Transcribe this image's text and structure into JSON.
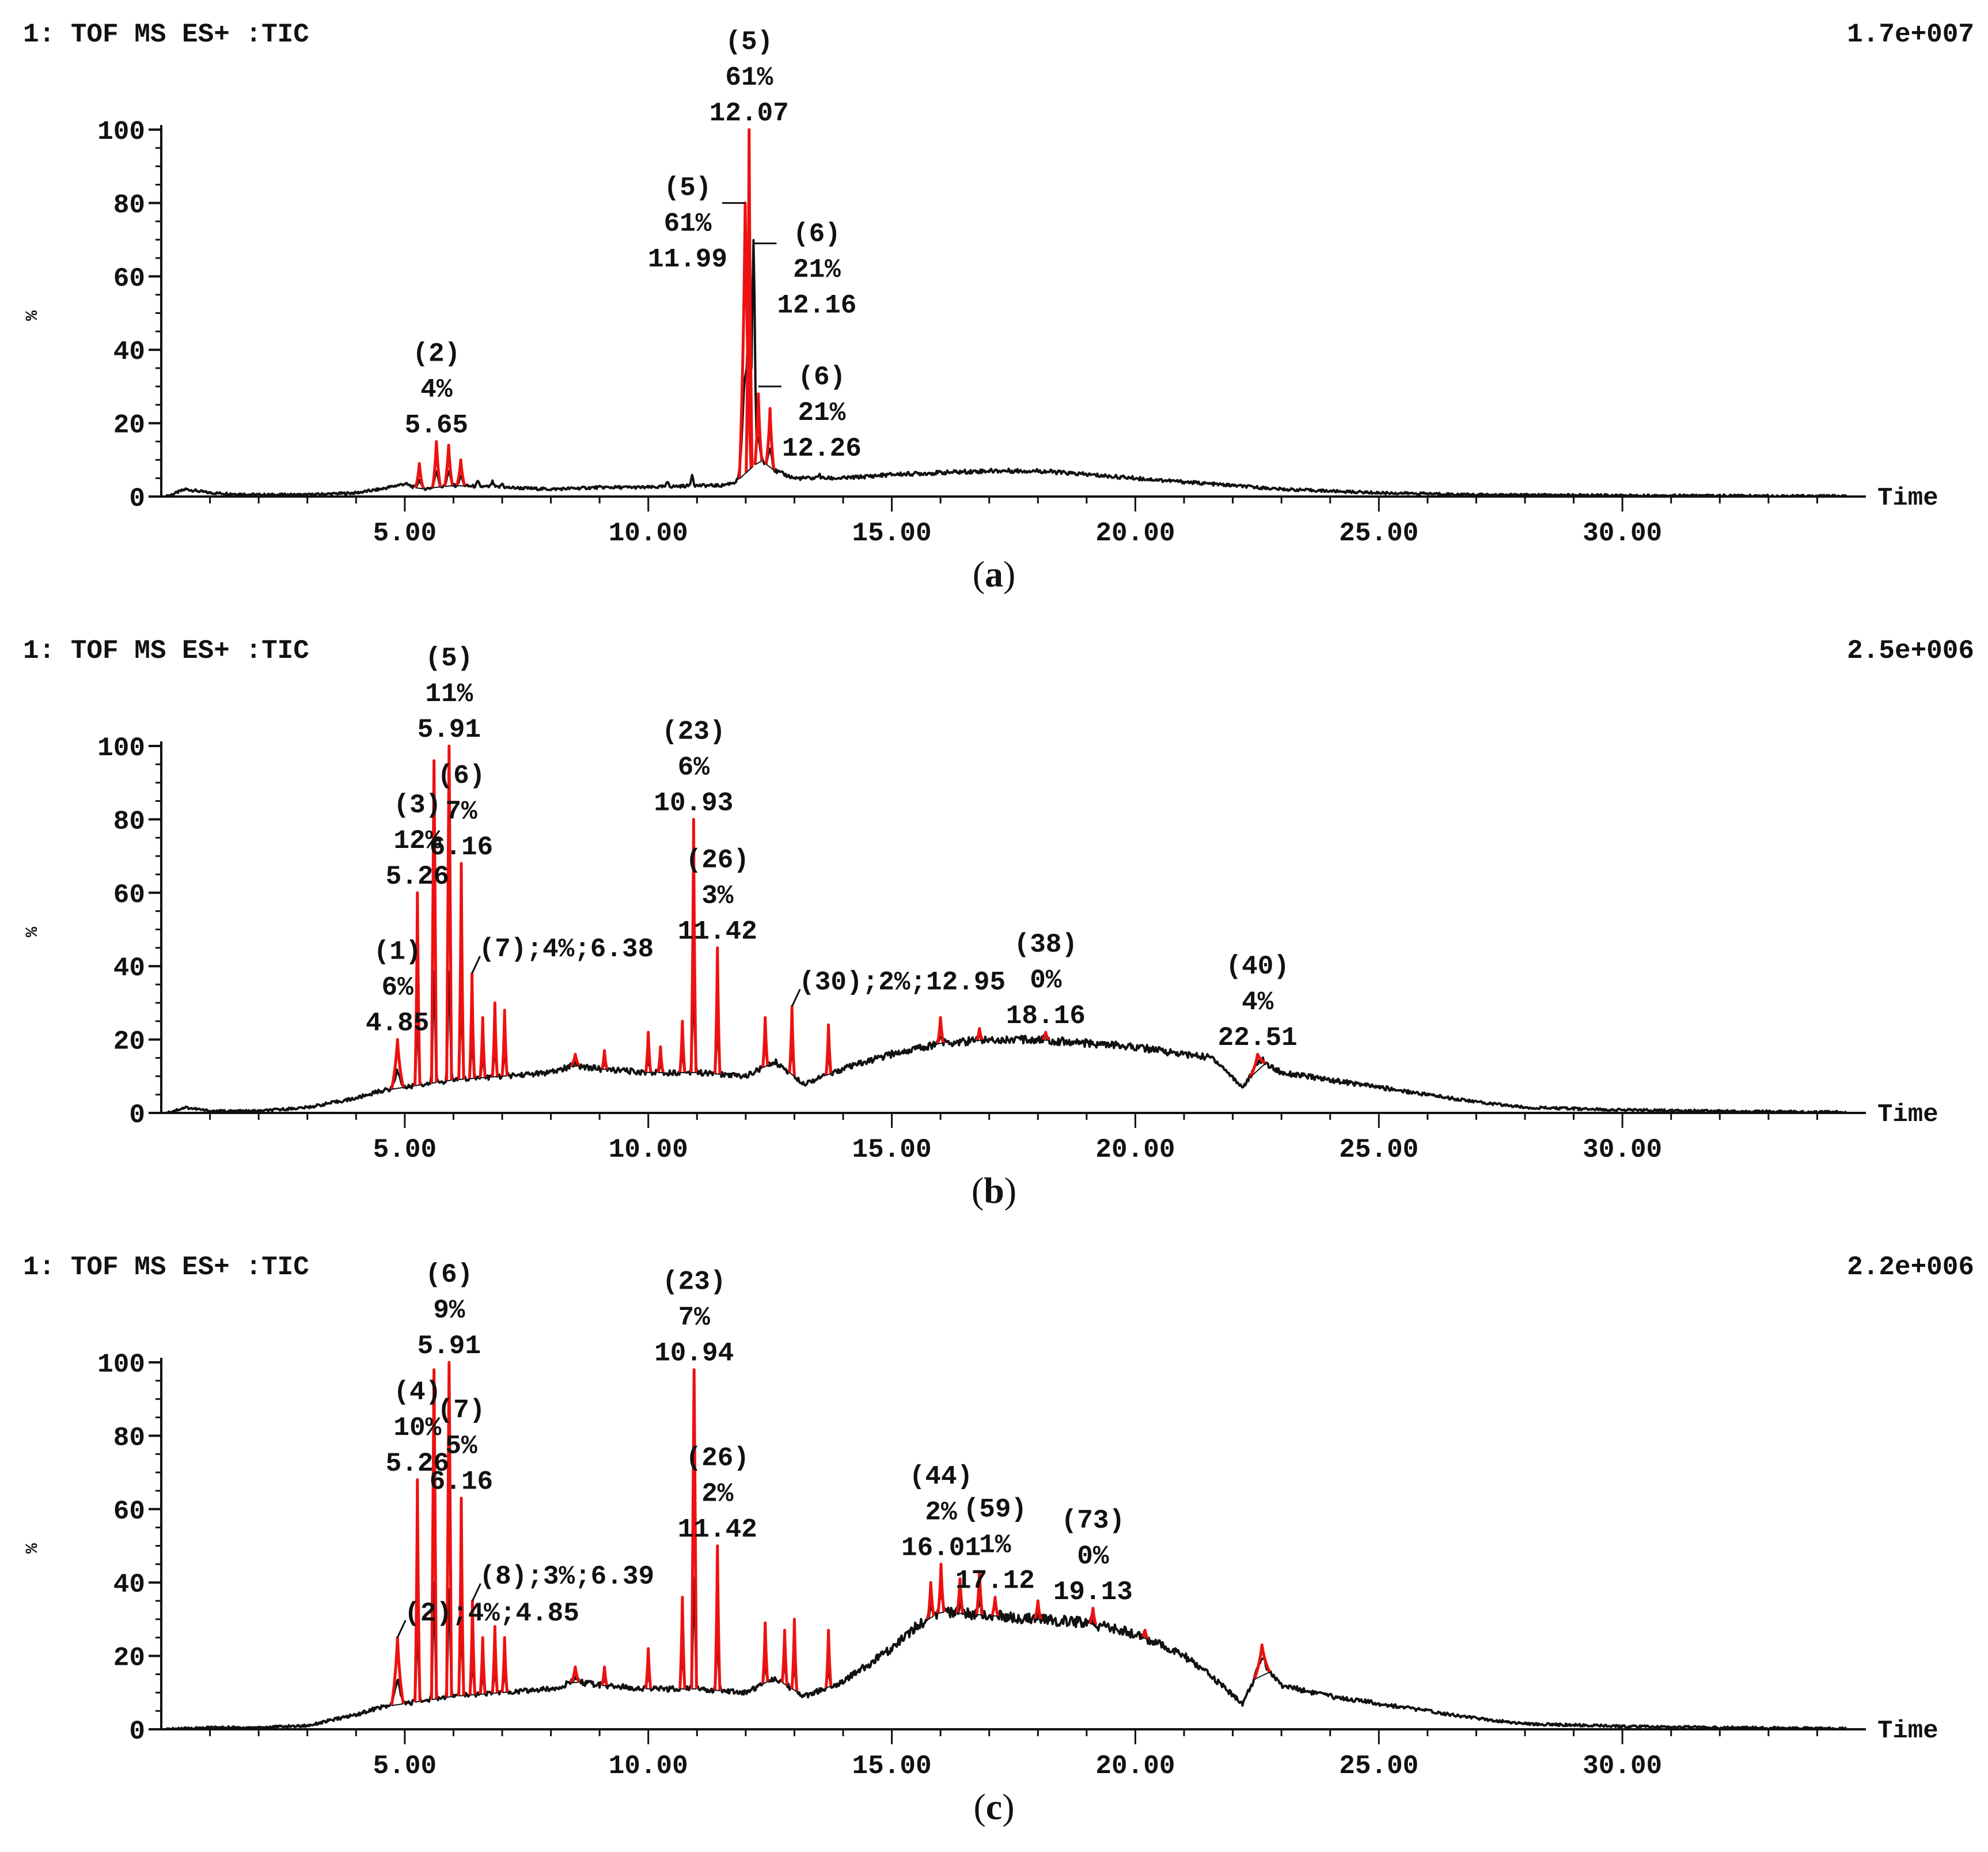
{
  "figure": {
    "panels": [
      {
        "id": "a",
        "caption_letter": "a",
        "trace_label": "1: TOF MS ES+ :TIC",
        "intensity_scale": "1.7e+007"
      },
      {
        "id": "b",
        "caption_letter": "b",
        "trace_label": "1: TOF MS ES+ :TIC",
        "intensity_scale": "2.5e+006"
      },
      {
        "id": "c",
        "caption_letter": "c",
        "trace_label": "1: TOF MS ES+ :TIC",
        "intensity_scale": "2.2e+006"
      }
    ]
  },
  "colors": {
    "tic": "#111111",
    "peak": "#ee1111",
    "axis": "#111111",
    "text": "#111111"
  },
  "chart_data": [
    {
      "type": "line",
      "panel": "a",
      "title": "1: TOF MS ES+ :TIC",
      "intensity_scale": "1.7e+007",
      "xlabel": "Time",
      "ylabel": "%",
      "xlim": [
        0,
        35
      ],
      "ylim": [
        0,
        100
      ],
      "xticks": [
        "5.00",
        "10.00",
        "15.00",
        "20.00",
        "25.00",
        "30.00"
      ],
      "yticks": [
        "0",
        "20",
        "40",
        "60",
        "80",
        "100"
      ],
      "baseline": [
        [
          0.1,
          0
        ],
        [
          0.5,
          2
        ],
        [
          1.0,
          1
        ],
        [
          2.0,
          0.5
        ],
        [
          3.0,
          0.5
        ],
        [
          4.0,
          1
        ],
        [
          4.5,
          2
        ],
        [
          5.0,
          3.5
        ],
        [
          5.3,
          2
        ],
        [
          6.0,
          3
        ],
        [
          7.0,
          2.5
        ],
        [
          8.0,
          2
        ],
        [
          9.0,
          2.5
        ],
        [
          10.0,
          2.5
        ],
        [
          11.0,
          3
        ],
        [
          11.5,
          3
        ],
        [
          11.8,
          4
        ],
        [
          12.3,
          10
        ],
        [
          12.6,
          7
        ],
        [
          13.0,
          5
        ],
        [
          14.0,
          5
        ],
        [
          15.0,
          6
        ],
        [
          16.0,
          6.5
        ],
        [
          17.0,
          7
        ],
        [
          17.5,
          7
        ],
        [
          18.0,
          7
        ],
        [
          19.0,
          6
        ],
        [
          20.0,
          5
        ],
        [
          21.0,
          4
        ],
        [
          22.0,
          3
        ],
        [
          23.0,
          2
        ],
        [
          24.0,
          1.5
        ],
        [
          25.0,
          1
        ],
        [
          26.0,
          0.8
        ],
        [
          27.0,
          0.5
        ],
        [
          30.0,
          0.3
        ],
        [
          33.0,
          0.2
        ],
        [
          34.6,
          0.1
        ]
      ],
      "peaks": [
        {
          "rt": 5.3,
          "height": 9,
          "width": 0.08,
          "color": "red"
        },
        {
          "rt": 5.65,
          "height": 15,
          "width": 0.08,
          "color": "red"
        },
        {
          "rt": 5.9,
          "height": 14,
          "width": 0.08,
          "color": "red"
        },
        {
          "rt": 6.15,
          "height": 10,
          "width": 0.08,
          "color": "red"
        },
        {
          "rt": 6.5,
          "height": 4,
          "width": 0.05,
          "color": "black"
        },
        {
          "rt": 6.8,
          "height": 4,
          "width": 0.05,
          "color": "black"
        },
        {
          "rt": 7.0,
          "height": 3.5,
          "width": 0.05,
          "color": "black"
        },
        {
          "rt": 10.4,
          "height": 4,
          "width": 0.05,
          "color": "black"
        },
        {
          "rt": 10.9,
          "height": 6,
          "width": 0.05,
          "color": "black"
        },
        {
          "rt": 11.99,
          "height": 80,
          "width": 0.12,
          "color": "red"
        },
        {
          "rt": 12.07,
          "height": 100,
          "width": 0.06,
          "color": "red"
        },
        {
          "rt": 12.16,
          "height": 69,
          "width": 0.06,
          "color": "black"
        },
        {
          "rt": 12.26,
          "height": 28,
          "width": 0.07,
          "color": "red"
        },
        {
          "rt": 12.5,
          "height": 24,
          "width": 0.08,
          "color": "red"
        },
        {
          "rt": 13.5,
          "height": 6,
          "width": 0.06,
          "color": "black"
        }
      ],
      "annotations": [
        {
          "rt": 5.65,
          "lines": [
            "(2)",
            "4%",
            "5.65"
          ],
          "leader": false
        },
        {
          "rt": 12.07,
          "lines": [
            "(5)",
            "61%",
            "12.07"
          ],
          "leader": false
        },
        {
          "rt": 11.99,
          "lines": [
            "(5)",
            "61%",
            "11.99"
          ],
          "leader": true,
          "side": "left",
          "leader_y": 80
        },
        {
          "rt": 12.16,
          "lines": [
            "(6)",
            "21%",
            "12.16"
          ],
          "leader": true,
          "side": "right",
          "leader_y": 69
        },
        {
          "rt": 12.26,
          "lines": [
            "(6)",
            "21%",
            "12.26"
          ],
          "leader": true,
          "side": "right",
          "leader_y": 30
        }
      ]
    },
    {
      "type": "line",
      "panel": "b",
      "title": "1: TOF MS ES+ :TIC",
      "intensity_scale": "2.5e+006",
      "xlabel": "Time",
      "ylabel": "%",
      "xlim": [
        0,
        35
      ],
      "ylim": [
        0,
        100
      ],
      "xticks": [
        "5.00",
        "10.00",
        "15.00",
        "20.00",
        "25.00",
        "30.00"
      ],
      "yticks": [
        "0",
        "20",
        "40",
        "60",
        "80",
        "100"
      ],
      "baseline": [
        [
          0.1,
          0
        ],
        [
          0.5,
          1.5
        ],
        [
          1.0,
          0.5
        ],
        [
          2.0,
          0.5
        ],
        [
          3.0,
          1.5
        ],
        [
          4.0,
          4
        ],
        [
          4.5,
          6
        ],
        [
          5.0,
          7
        ],
        [
          6.0,
          9
        ],
        [
          7.0,
          10
        ],
        [
          8.0,
          11
        ],
        [
          8.5,
          13
        ],
        [
          9.0,
          12
        ],
        [
          10.0,
          11
        ],
        [
          11.0,
          11
        ],
        [
          12.0,
          10
        ],
        [
          12.6,
          14
        ],
        [
          13.2,
          8
        ],
        [
          14.0,
          12
        ],
        [
          15.0,
          16
        ],
        [
          16.0,
          19
        ],
        [
          17.0,
          20
        ],
        [
          18.0,
          20
        ],
        [
          19.0,
          19
        ],
        [
          20.0,
          18
        ],
        [
          21.0,
          16
        ],
        [
          21.6,
          15
        ],
        [
          22.2,
          7
        ],
        [
          22.6,
          14
        ],
        [
          23.0,
          11
        ],
        [
          24.0,
          9
        ],
        [
          25.0,
          7
        ],
        [
          26.0,
          5
        ],
        [
          27.0,
          3
        ],
        [
          28.0,
          1.5
        ],
        [
          30.0,
          0.8
        ],
        [
          32.0,
          0.5
        ],
        [
          34.6,
          0.2
        ]
      ],
      "peaks": [
        {
          "rt": 4.85,
          "height": 20,
          "width": 0.12,
          "color": "red"
        },
        {
          "rt": 5.26,
          "height": 60,
          "width": 0.05,
          "color": "red"
        },
        {
          "rt": 5.6,
          "height": 96,
          "width": 0.05,
          "color": "red"
        },
        {
          "rt": 5.91,
          "height": 100,
          "width": 0.05,
          "color": "red"
        },
        {
          "rt": 6.16,
          "height": 68,
          "width": 0.05,
          "color": "red"
        },
        {
          "rt": 6.38,
          "height": 38,
          "width": 0.05,
          "color": "red"
        },
        {
          "rt": 6.6,
          "height": 26,
          "width": 0.05,
          "color": "red"
        },
        {
          "rt": 6.85,
          "height": 30,
          "width": 0.05,
          "color": "red"
        },
        {
          "rt": 7.05,
          "height": 28,
          "width": 0.05,
          "color": "red"
        },
        {
          "rt": 8.5,
          "height": 16,
          "width": 0.08,
          "color": "red"
        },
        {
          "rt": 9.1,
          "height": 17,
          "width": 0.05,
          "color": "red"
        },
        {
          "rt": 10.0,
          "height": 22,
          "width": 0.05,
          "color": "red"
        },
        {
          "rt": 10.25,
          "height": 18,
          "width": 0.05,
          "color": "red"
        },
        {
          "rt": 10.7,
          "height": 25,
          "width": 0.05,
          "color": "red"
        },
        {
          "rt": 10.93,
          "height": 80,
          "width": 0.05,
          "color": "red"
        },
        {
          "rt": 11.42,
          "height": 45,
          "width": 0.05,
          "color": "red"
        },
        {
          "rt": 12.4,
          "height": 26,
          "width": 0.05,
          "color": "red"
        },
        {
          "rt": 12.95,
          "height": 29,
          "width": 0.05,
          "color": "red"
        },
        {
          "rt": 13.7,
          "height": 24,
          "width": 0.05,
          "color": "red"
        },
        {
          "rt": 16.0,
          "height": 26,
          "width": 0.06,
          "color": "red"
        },
        {
          "rt": 16.8,
          "height": 23,
          "width": 0.06,
          "color": "red"
        },
        {
          "rt": 18.16,
          "height": 22,
          "width": 0.06,
          "color": "red"
        },
        {
          "rt": 22.51,
          "height": 16,
          "width": 0.16,
          "color": "red"
        }
      ],
      "annotations": [
        {
          "rt": 4.85,
          "lines": [
            "(1)",
            "6%",
            "4.85"
          ],
          "leader": false
        },
        {
          "rt": 5.26,
          "lines": [
            "(3)",
            "12%",
            "5.26"
          ],
          "leader": false
        },
        {
          "rt": 5.91,
          "lines": [
            "(5)",
            "11%",
            "5.91"
          ],
          "leader": false
        },
        {
          "rt": 6.16,
          "lines": [
            "(6)",
            "7%",
            "6.16"
          ],
          "leader": false
        },
        {
          "rt": 6.38,
          "lines": [
            "(7);4%;6.38"
          ],
          "leader": false
        },
        {
          "rt": 10.93,
          "lines": [
            "(23)",
            "6%",
            "10.93"
          ],
          "leader": false
        },
        {
          "rt": 11.42,
          "lines": [
            "(26)",
            "3%",
            "11.42"
          ],
          "leader": false
        },
        {
          "rt": 12.95,
          "lines": [
            "(30);2%;12.95"
          ],
          "leader": false
        },
        {
          "rt": 18.16,
          "lines": [
            "(38)",
            "0%",
            "18.16"
          ],
          "leader": false
        },
        {
          "rt": 22.51,
          "lines": [
            "(40)",
            "4%",
            "22.51"
          ],
          "leader": false
        }
      ]
    },
    {
      "type": "line",
      "panel": "c",
      "title": "1: TOF MS ES+ :TIC",
      "intensity_scale": "2.2e+006",
      "xlabel": "Time",
      "ylabel": "%",
      "xlim": [
        0,
        35
      ],
      "ylim": [
        0,
        100
      ],
      "xticks": [
        "5.00",
        "10.00",
        "15.00",
        "20.00",
        "25.00",
        "30.00"
      ],
      "yticks": [
        "0",
        "20",
        "40",
        "60",
        "80",
        "100"
      ],
      "baseline": [
        [
          0.1,
          0
        ],
        [
          1.0,
          0.5
        ],
        [
          2.0,
          0.5
        ],
        [
          3.0,
          1
        ],
        [
          4.0,
          4
        ],
        [
          4.5,
          6
        ],
        [
          5.0,
          7
        ],
        [
          6.0,
          9
        ],
        [
          7.0,
          10
        ],
        [
          8.0,
          11
        ],
        [
          8.5,
          13
        ],
        [
          9.0,
          12
        ],
        [
          10.0,
          11
        ],
        [
          11.0,
          11
        ],
        [
          12.0,
          10
        ],
        [
          12.6,
          14
        ],
        [
          13.2,
          9
        ],
        [
          14.0,
          13
        ],
        [
          15.0,
          22
        ],
        [
          15.5,
          28
        ],
        [
          16.0,
          32
        ],
        [
          17.0,
          31
        ],
        [
          18.0,
          30
        ],
        [
          19.0,
          29
        ],
        [
          20.0,
          26
        ],
        [
          21.0,
          20
        ],
        [
          21.6,
          14
        ],
        [
          22.2,
          7
        ],
        [
          22.6,
          18
        ],
        [
          23.0,
          12
        ],
        [
          24.0,
          9
        ],
        [
          25.0,
          7
        ],
        [
          26.0,
          5
        ],
        [
          27.0,
          3
        ],
        [
          28.0,
          1.5
        ],
        [
          30.0,
          0.8
        ],
        [
          32.0,
          0.5
        ],
        [
          34.6,
          0.2
        ]
      ],
      "peaks": [
        {
          "rt": 4.85,
          "height": 25,
          "width": 0.12,
          "color": "red"
        },
        {
          "rt": 5.26,
          "height": 68,
          "width": 0.05,
          "color": "red"
        },
        {
          "rt": 5.6,
          "height": 98,
          "width": 0.05,
          "color": "red"
        },
        {
          "rt": 5.91,
          "height": 100,
          "width": 0.05,
          "color": "red"
        },
        {
          "rt": 6.16,
          "height": 63,
          "width": 0.05,
          "color": "red"
        },
        {
          "rt": 6.39,
          "height": 35,
          "width": 0.05,
          "color": "red"
        },
        {
          "rt": 6.6,
          "height": 25,
          "width": 0.05,
          "color": "red"
        },
        {
          "rt": 6.85,
          "height": 28,
          "width": 0.05,
          "color": "red"
        },
        {
          "rt": 7.05,
          "height": 25,
          "width": 0.05,
          "color": "red"
        },
        {
          "rt": 8.5,
          "height": 17,
          "width": 0.08,
          "color": "red"
        },
        {
          "rt": 9.1,
          "height": 17,
          "width": 0.05,
          "color": "red"
        },
        {
          "rt": 10.0,
          "height": 22,
          "width": 0.05,
          "color": "red"
        },
        {
          "rt": 10.7,
          "height": 36,
          "width": 0.05,
          "color": "red"
        },
        {
          "rt": 10.94,
          "height": 98,
          "width": 0.05,
          "color": "red"
        },
        {
          "rt": 11.42,
          "height": 50,
          "width": 0.05,
          "color": "red"
        },
        {
          "rt": 12.4,
          "height": 29,
          "width": 0.05,
          "color": "red"
        },
        {
          "rt": 12.8,
          "height": 27,
          "width": 0.05,
          "color": "red"
        },
        {
          "rt": 13.0,
          "height": 30,
          "width": 0.05,
          "color": "red"
        },
        {
          "rt": 13.7,
          "height": 27,
          "width": 0.05,
          "color": "red"
        },
        {
          "rt": 15.8,
          "height": 40,
          "width": 0.06,
          "color": "red"
        },
        {
          "rt": 16.01,
          "height": 45,
          "width": 0.06,
          "color": "red"
        },
        {
          "rt": 16.4,
          "height": 41,
          "width": 0.06,
          "color": "red"
        },
        {
          "rt": 16.8,
          "height": 43,
          "width": 0.06,
          "color": "red"
        },
        {
          "rt": 17.12,
          "height": 36,
          "width": 0.06,
          "color": "red"
        },
        {
          "rt": 18.0,
          "height": 35,
          "width": 0.06,
          "color": "red"
        },
        {
          "rt": 19.13,
          "height": 33,
          "width": 0.06,
          "color": "red"
        },
        {
          "rt": 20.2,
          "height": 27,
          "width": 0.06,
          "color": "red"
        },
        {
          "rt": 22.6,
          "height": 23,
          "width": 0.16,
          "color": "red"
        }
      ],
      "annotations": [
        {
          "rt": 4.85,
          "lines": [
            "(2);4%;4.85"
          ],
          "leader": false
        },
        {
          "rt": 5.26,
          "lines": [
            "(4)",
            "10%",
            "5.26"
          ],
          "leader": false
        },
        {
          "rt": 5.91,
          "lines": [
            "(6)",
            "9%",
            "5.91"
          ],
          "leader": false
        },
        {
          "rt": 6.16,
          "lines": [
            "(7)",
            "5%",
            "6.16"
          ],
          "leader": false
        },
        {
          "rt": 6.39,
          "lines": [
            "(8);3%;6.39"
          ],
          "leader": false
        },
        {
          "rt": 10.94,
          "lines": [
            "(23)",
            "7%",
            "10.94"
          ],
          "leader": false
        },
        {
          "rt": 11.42,
          "lines": [
            "(26)",
            "2%",
            "11.42"
          ],
          "leader": false
        },
        {
          "rt": 16.01,
          "lines": [
            "(44)",
            "2%",
            "16.01"
          ],
          "leader": false
        },
        {
          "rt": 17.12,
          "lines": [
            "(59)",
            "1%",
            "17.12"
          ],
          "leader": false
        },
        {
          "rt": 19.13,
          "lines": [
            "(73)",
            "0%",
            "19.13"
          ],
          "leader": false
        }
      ]
    }
  ]
}
